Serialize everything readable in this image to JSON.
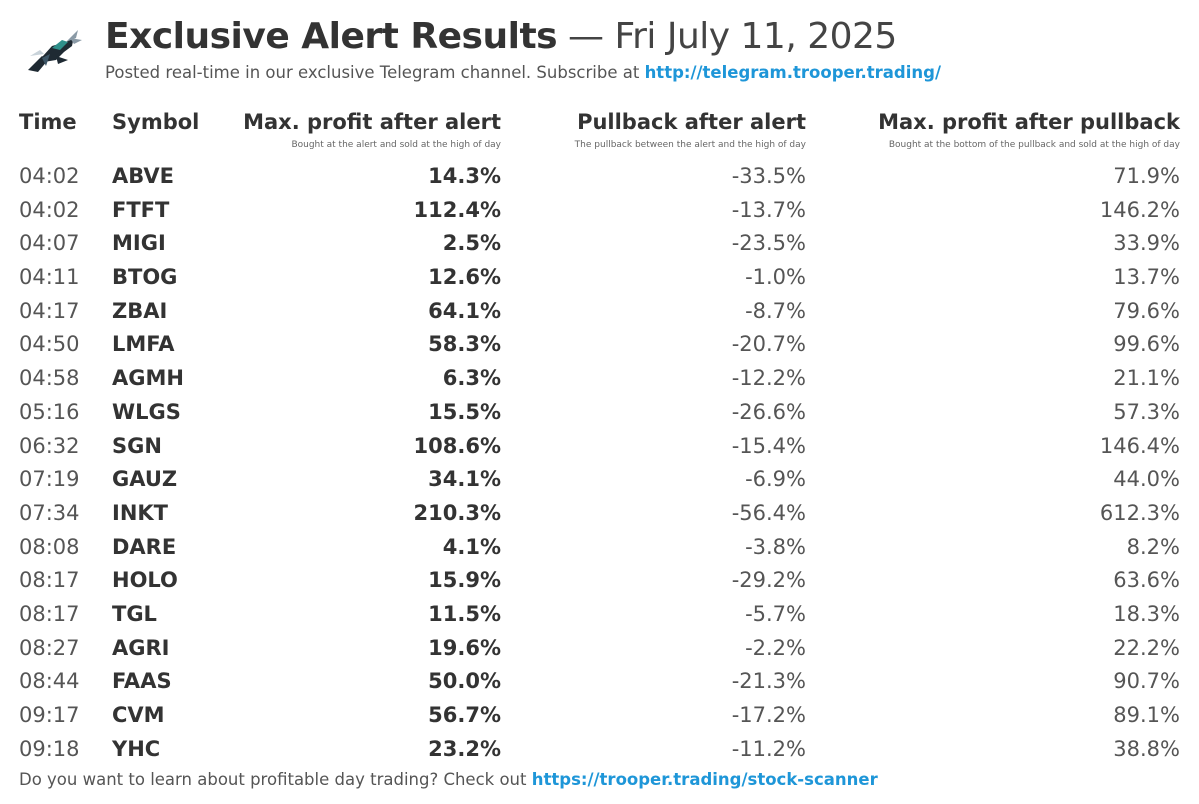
{
  "header": {
    "title": "Exclusive Alert Results",
    "separator": "—",
    "date": "Fri July 11, 2025",
    "subtitle_text": "Posted real-time in our exclusive Telegram channel. Subscribe at ",
    "subtitle_link": "http://telegram.trooper.trading/",
    "logo_icon": "bull-logo-icon"
  },
  "columns": {
    "time": "Time",
    "symbol": "Symbol",
    "max_profit": "Max. profit after alert",
    "max_profit_sub": "Bought at the alert and sold at the high of day",
    "pullback": "Pullback after alert",
    "pullback_sub": "The pullback between the alert and the high of day",
    "after_pullback": "Max. profit after pullback",
    "after_pullback_sub": "Bought at the bottom of the pullback and sold at the high of day"
  },
  "rows": [
    {
      "time": "04:02",
      "symbol": "ABVE",
      "max_profit": "14.3%",
      "pullback": "-33.5%",
      "after_pullback": "71.9%"
    },
    {
      "time": "04:02",
      "symbol": "FTFT",
      "max_profit": "112.4%",
      "pullback": "-13.7%",
      "after_pullback": "146.2%"
    },
    {
      "time": "04:07",
      "symbol": "MIGI",
      "max_profit": "2.5%",
      "pullback": "-23.5%",
      "after_pullback": "33.9%"
    },
    {
      "time": "04:11",
      "symbol": "BTOG",
      "max_profit": "12.6%",
      "pullback": "-1.0%",
      "after_pullback": "13.7%"
    },
    {
      "time": "04:17",
      "symbol": "ZBAI",
      "max_profit": "64.1%",
      "pullback": "-8.7%",
      "after_pullback": "79.6%"
    },
    {
      "time": "04:50",
      "symbol": "LMFA",
      "max_profit": "58.3%",
      "pullback": "-20.7%",
      "after_pullback": "99.6%"
    },
    {
      "time": "04:58",
      "symbol": "AGMH",
      "max_profit": "6.3%",
      "pullback": "-12.2%",
      "after_pullback": "21.1%"
    },
    {
      "time": "05:16",
      "symbol": "WLGS",
      "max_profit": "15.5%",
      "pullback": "-26.6%",
      "after_pullback": "57.3%"
    },
    {
      "time": "06:32",
      "symbol": "SGN",
      "max_profit": "108.6%",
      "pullback": "-15.4%",
      "after_pullback": "146.4%"
    },
    {
      "time": "07:19",
      "symbol": "GAUZ",
      "max_profit": "34.1%",
      "pullback": "-6.9%",
      "after_pullback": "44.0%"
    },
    {
      "time": "07:34",
      "symbol": "INKT",
      "max_profit": "210.3%",
      "pullback": "-56.4%",
      "after_pullback": "612.3%"
    },
    {
      "time": "08:08",
      "symbol": "DARE",
      "max_profit": "4.1%",
      "pullback": "-3.8%",
      "after_pullback": "8.2%"
    },
    {
      "time": "08:17",
      "symbol": "HOLO",
      "max_profit": "15.9%",
      "pullback": "-29.2%",
      "after_pullback": "63.6%"
    },
    {
      "time": "08:17",
      "symbol": "TGL",
      "max_profit": "11.5%",
      "pullback": "-5.7%",
      "after_pullback": "18.3%"
    },
    {
      "time": "08:27",
      "symbol": "AGRI",
      "max_profit": "19.6%",
      "pullback": "-2.2%",
      "after_pullback": "22.2%"
    },
    {
      "time": "08:44",
      "symbol": "FAAS",
      "max_profit": "50.0%",
      "pullback": "-21.3%",
      "after_pullback": "90.7%"
    },
    {
      "time": "09:17",
      "symbol": "CVM",
      "max_profit": "56.7%",
      "pullback": "-17.2%",
      "after_pullback": "89.1%"
    },
    {
      "time": "09:18",
      "symbol": "YHC",
      "max_profit": "23.2%",
      "pullback": "-11.2%",
      "after_pullback": "38.8%"
    }
  ],
  "footer": {
    "text": "Do you want to learn about profitable day trading? Check out ",
    "link": "https://trooper.trading/stock-scanner"
  },
  "colors": {
    "text": "#333333",
    "link": "#1e96d8",
    "logo_dark": "#1f2a33",
    "logo_teal": "#2f8f8a"
  }
}
